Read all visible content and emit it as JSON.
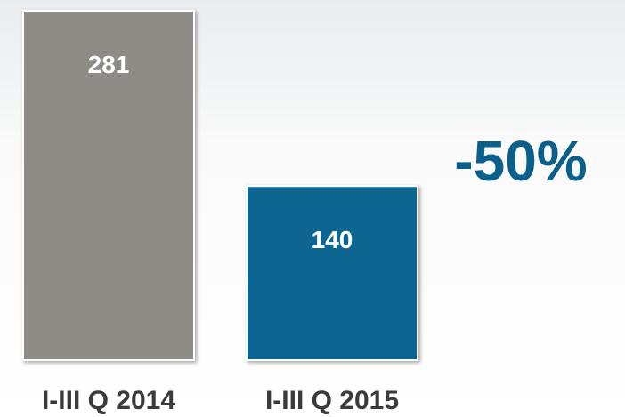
{
  "chart_data": {
    "type": "bar",
    "categories": [
      "I-III Q 2014",
      "I-III Q 2015"
    ],
    "values": [
      281,
      140
    ],
    "colors": [
      "#8f8c87",
      "#0a6592"
    ],
    "annotation": "-50%"
  }
}
